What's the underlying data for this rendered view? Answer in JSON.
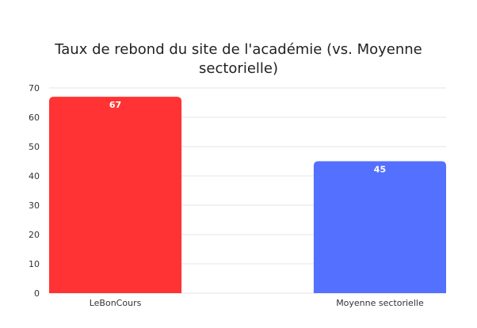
{
  "chart_data": {
    "type": "bar",
    "title": "Taux de rebond du site de l'académie (vs. Moyenne sectorielle)",
    "title_lines": [
      "Taux de rebond du site de l'académie (vs. Moyenne",
      "sectorielle)"
    ],
    "xlabel": "",
    "ylabel": "",
    "categories": [
      "LeBonCours",
      "Moyenne sectorielle"
    ],
    "values": [
      67,
      45
    ],
    "data_labels": [
      "67",
      "45"
    ],
    "bar_colors": [
      "#ff3333",
      "#5470ff"
    ],
    "ylim": [
      0,
      70
    ],
    "yticks": [
      0,
      10,
      20,
      30,
      40,
      50,
      60,
      70
    ],
    "grid": true,
    "legend": "none"
  }
}
